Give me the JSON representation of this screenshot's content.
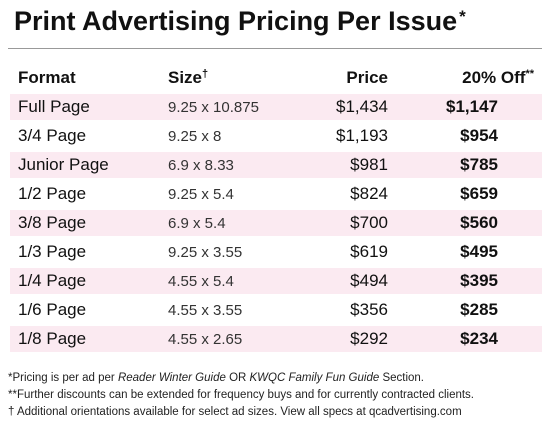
{
  "title": {
    "text": "Print Advertising Pricing Per Issue",
    "mark": "*"
  },
  "table": {
    "headers": {
      "format": "Format",
      "size": "Size",
      "size_mark": "†",
      "price": "Price",
      "off": "20% Off",
      "off_mark": "**"
    },
    "rows": [
      {
        "format": "Full Page",
        "size": "9.25 x 10.875",
        "price": "$1,434",
        "off": "$1,147"
      },
      {
        "format": "3/4 Page",
        "size": "9.25 x 8",
        "price": "$1,193",
        "off": "$954"
      },
      {
        "format": "Junior Page",
        "size": "6.9 x 8.33",
        "price": "$981",
        "off": "$785"
      },
      {
        "format": "1/2 Page",
        "size": "9.25 x 5.4",
        "price": "$824",
        "off": "$659"
      },
      {
        "format": "3/8 Page",
        "size": "6.9 x 5.4",
        "price": "$700",
        "off": "$560"
      },
      {
        "format": "1/3 Page",
        "size": "9.25 x 3.55",
        "price": "$619",
        "off": "$495"
      },
      {
        "format": "1/4 Page",
        "size": "4.55 x 5.4",
        "price": "$494",
        "off": "$395"
      },
      {
        "format": "1/6 Page",
        "size": "4.55 x 3.55",
        "price": "$356",
        "off": "$285"
      },
      {
        "format": "1/8 Page",
        "size": "4.55 x 2.65",
        "price": "$292",
        "off": "$234"
      }
    ],
    "shade_color": "#fbeaf1"
  },
  "notes": {
    "line1_a": "*Pricing is per ad per ",
    "line1_b": "Reader Winter Guide",
    "line1_c": " OR ",
    "line1_d": "KWQC Family Fun Guide",
    "line1_e": " Section.",
    "line2": "**Further discounts can be extended for frequency buys and for currently contracted clients.",
    "line3": "† Additional orientations available for select ad sizes. View all specs at qcadvertising.com"
  }
}
